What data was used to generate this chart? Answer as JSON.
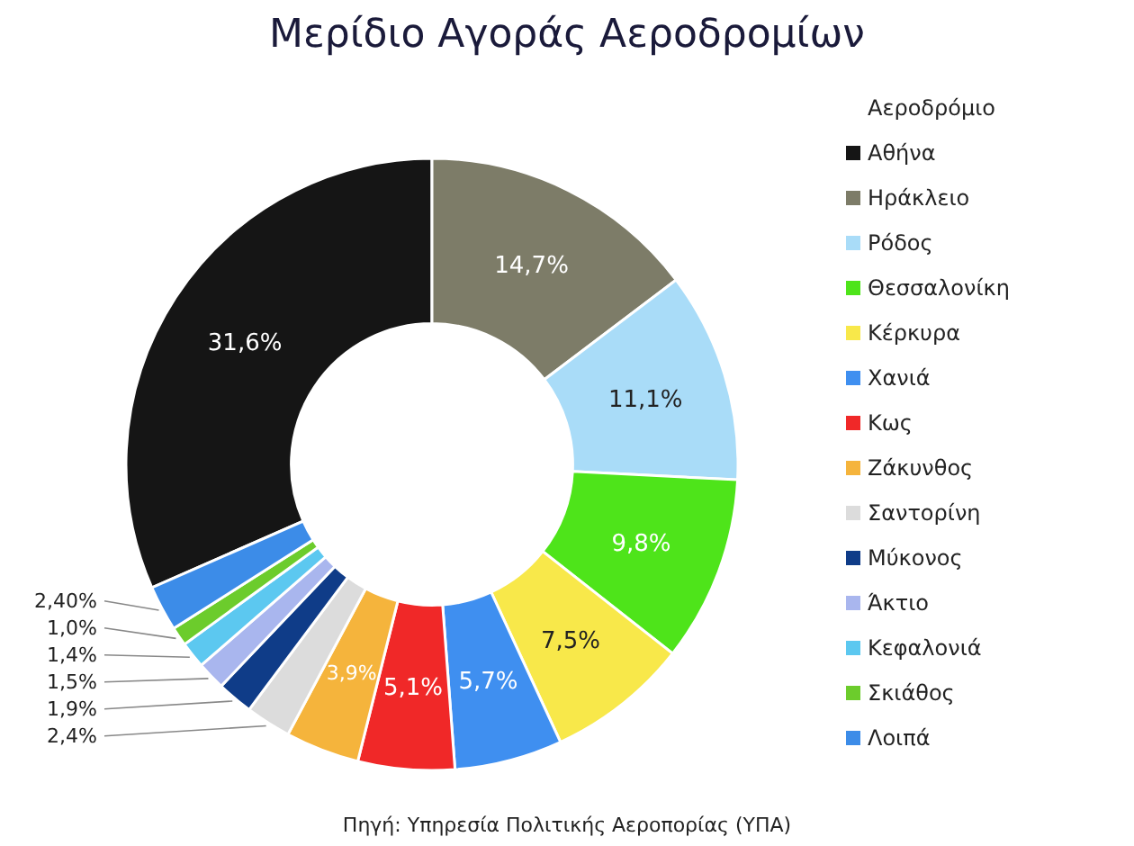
{
  "chart_data": {
    "type": "donut",
    "title": "Μερίδιο Αγοράς Αεροδρομίων",
    "legend_title": "Αεροδρόμιο",
    "categories": [
      "Αθήνα",
      "Ηράκλειο",
      "Ρόδος",
      "Θεσσαλονίκη",
      "Κέρκυρα",
      "Χανιά",
      "Κως",
      "Ζάκυνθος",
      "Σαντορίνη",
      "Μύκονος",
      "Άκτιο",
      "Κεφαλονιά",
      "Σκιάθος",
      "Λοιπά"
    ],
    "values": [
      31.6,
      14.7,
      11.1,
      9.8,
      7.5,
      5.7,
      5.1,
      3.9,
      2.4,
      1.9,
      1.5,
      1.4,
      1.0,
      2.4
    ],
    "value_labels": [
      "31,6%",
      "14,7%",
      "11,1%",
      "9,8%",
      "7,5%",
      "5,7%",
      "5,1%",
      "3,9%",
      "2,4%",
      "1,9%",
      "1,5%",
      "1,4%",
      "1,0%",
      "2,40%"
    ],
    "colors": [
      "#151515",
      "#7d7c68",
      "#a9dcf8",
      "#4ee41a",
      "#f8e84a",
      "#3f8ff0",
      "#f02828",
      "#f5b43c",
      "#dcdcdc",
      "#0f3c88",
      "#a9b6ee",
      "#5cc8f0",
      "#6ccc2c",
      "#3c8ce8"
    ],
    "legend": "right",
    "annotations": [
      "Πηγή: Υπηρεσία Πολιτικής Αεροπορίας (ΥΠΑ)"
    ]
  }
}
